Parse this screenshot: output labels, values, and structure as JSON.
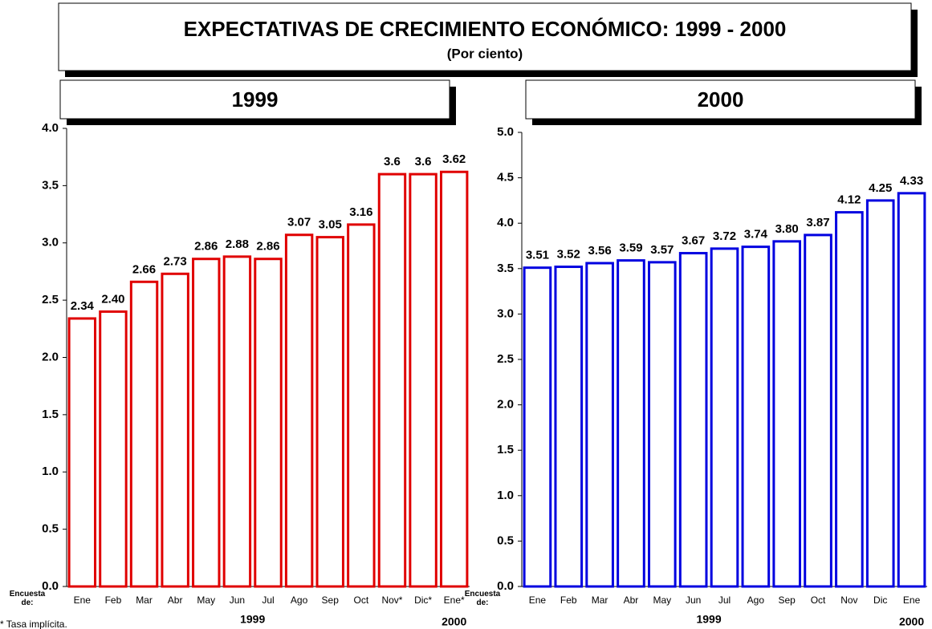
{
  "header": {
    "title": "EXPECTATIVAS DE CRECIMIENTO ECONÓMICO: 1999 - 2000",
    "subtitle": "(Por ciento)"
  },
  "footnote": "* Tasa implícita.",
  "chart_data": [
    {
      "type": "bar",
      "title": "1999",
      "color": "#e00000",
      "x_label": "Encuesta de:",
      "x_groups": [
        "1999",
        "2000"
      ],
      "categories": [
        "Ene",
        "Feb",
        "Mar",
        "Abr",
        "May",
        "Jun",
        "Jul",
        "Ago",
        "Sep",
        "Oct",
        "Nov*",
        "Dic*",
        "Ene*"
      ],
      "values": [
        2.34,
        2.4,
        2.66,
        2.73,
        2.86,
        2.88,
        2.86,
        3.07,
        3.05,
        3.16,
        3.6,
        3.6,
        3.62
      ],
      "value_labels": [
        "2.34",
        "2.40",
        "2.66",
        "2.73",
        "2.86",
        "2.88",
        "2.86",
        "3.07",
        "3.05",
        "3.16",
        "3.6",
        "3.6",
        "3.62"
      ],
      "ylim": [
        0,
        4
      ],
      "yticks": [
        {
          "value": 0,
          "label": "0.0"
        },
        0.5,
        {
          "value": 1,
          "label": "1.0"
        },
        1.5,
        {
          "value": 2,
          "label": "2.0"
        },
        2.5,
        {
          "value": 3,
          "label": "3.0"
        },
        3.5,
        {
          "value": 4,
          "label": "4.0"
        }
      ]
    },
    {
      "type": "bar",
      "title": "2000",
      "color": "#0000e0",
      "x_label": "Encuesta de:",
      "x_groups": [
        "1999",
        "2000"
      ],
      "categories": [
        "Ene",
        "Feb",
        "Mar",
        "Abr",
        "May",
        "Jun",
        "Jul",
        "Ago",
        "Sep",
        "Oct",
        "Nov",
        "Dic",
        "Ene"
      ],
      "values": [
        3.51,
        3.52,
        3.56,
        3.59,
        3.57,
        3.67,
        3.72,
        3.74,
        3.8,
        3.87,
        4.12,
        4.25,
        4.33
      ],
      "value_labels": [
        "3.51",
        "3.52",
        "3.56",
        "3.59",
        "3.57",
        "3.67",
        "3.72",
        "3.74",
        "3.80",
        "3.87",
        "4.12",
        "4.25",
        "4.33"
      ],
      "ylim": [
        0,
        5
      ],
      "yticks": [
        {
          "value": 0,
          "label": "0.0"
        },
        0.5,
        {
          "value": 1,
          "label": "1.0"
        },
        1.5,
        {
          "value": 2,
          "label": "2.0"
        },
        2.5,
        {
          "value": 3,
          "label": "3.0"
        },
        3.5,
        {
          "value": 4,
          "label": "4.0"
        },
        4.5,
        {
          "value": 5,
          "label": "5.0"
        }
      ]
    }
  ]
}
